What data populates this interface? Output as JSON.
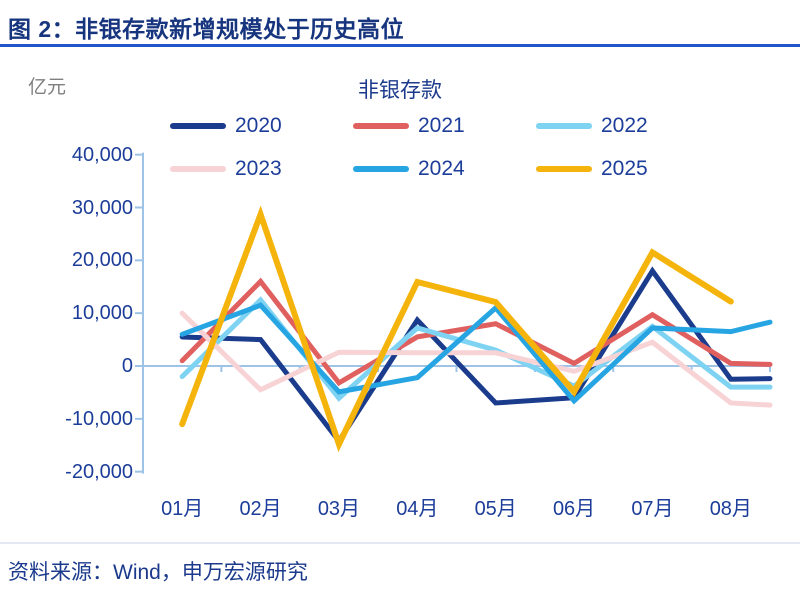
{
  "header": {
    "title": "图 2：非银存款新增规模处于历史高位"
  },
  "footer": {
    "source": "资料来源：Wind，申万宏源研究"
  },
  "chart_data": {
    "type": "line",
    "title": "非银存款",
    "unit_label": "亿元",
    "categories": [
      "01月",
      "02月",
      "03月",
      "04月",
      "05月",
      "06月",
      "07月",
      "08月"
    ],
    "y_ticks": [
      40000,
      30000,
      20000,
      10000,
      0,
      -10000,
      -20000
    ],
    "ylim": [
      -20000,
      40000
    ],
    "grid": "zero-line-only",
    "legend_position": "top",
    "axis_color": "#9DC3E6",
    "label_color": "#1C3D99",
    "series": [
      {
        "name": "2020",
        "color": "#1B3C8C",
        "width": 5,
        "values": [
          5500,
          5000,
          -14200,
          8700,
          -7000,
          -6000,
          18000,
          -2500
        ],
        "edge_value": -2400
      },
      {
        "name": "2021",
        "color": "#E06060",
        "width": 5,
        "values": [
          1000,
          16000,
          -3200,
          5500,
          8000,
          500,
          9700,
          500
        ],
        "edge_value": 300
      },
      {
        "name": "2022",
        "color": "#7ED3F2",
        "width": 5,
        "values": [
          -2000,
          12500,
          -6100,
          7200,
          3000,
          -3800,
          7500,
          -4000
        ],
        "edge_value": -4000
      },
      {
        "name": "2023",
        "color": "#F8D3D5",
        "width": 5,
        "values": [
          10000,
          -4500,
          2600,
          2500,
          2500,
          -1000,
          4500,
          -7000
        ],
        "edge_value": -7400
      },
      {
        "name": "2024",
        "color": "#27A5E3",
        "width": 5,
        "values": [
          6000,
          11500,
          -4900,
          -2200,
          11000,
          -6600,
          7200,
          6500
        ],
        "edge_value": 8300
      },
      {
        "name": "2025",
        "color": "#F5B40C",
        "width": 6,
        "values": [
          -11000,
          28700,
          -14800,
          15900,
          12100,
          -4900,
          21500,
          12200
        ],
        "edge_value": null
      }
    ]
  }
}
